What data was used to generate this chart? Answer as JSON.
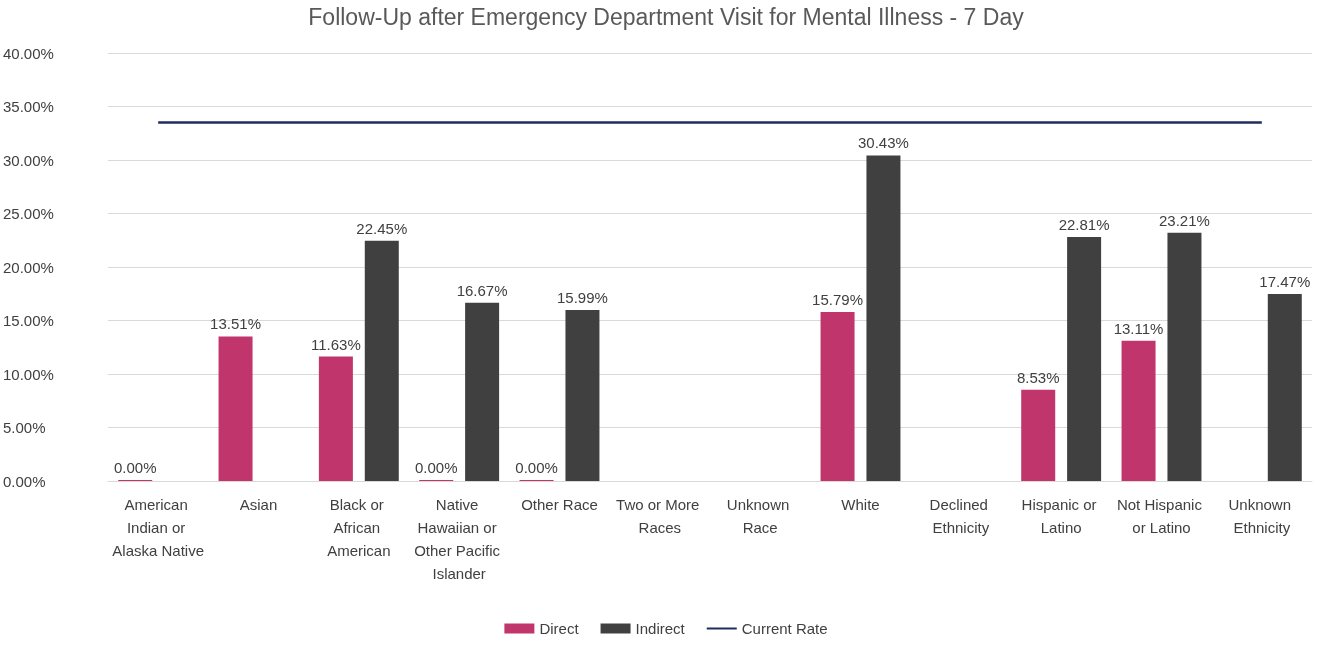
{
  "chart_data": {
    "type": "bar",
    "title": "Follow-Up after Emergency Department Visit for Mental Illness - 7 Day",
    "categories": [
      "American Indian or Alaska Native",
      "Asian",
      "Black or African American",
      "Native Hawaiian or Other Pacific Islander",
      "Other Race",
      "Two or More Races",
      "Unknown Race",
      "White",
      "Declined Ethnicity",
      "Hispanic or Latino",
      "Not Hispanic or Latino",
      "Unknown Ethnicity"
    ],
    "series": [
      {
        "name": "Direct",
        "color": "#c0356b",
        "values": [
          0,
          13.51,
          11.63,
          0,
          0,
          null,
          null,
          15.79,
          null,
          8.53,
          13.11,
          null
        ],
        "value_labels": [
          "0.00%",
          "13.51%",
          "11.63%",
          "0.00%",
          "0.00%",
          null,
          null,
          "15.79%",
          null,
          "8.53%",
          "13.11%",
          null
        ]
      },
      {
        "name": "Indirect",
        "color": "#404040",
        "values": [
          null,
          null,
          22.45,
          16.67,
          15.99,
          null,
          null,
          30.43,
          null,
          22.81,
          23.21,
          17.47
        ],
        "value_labels": [
          null,
          null,
          "22.45%",
          "16.67%",
          "15.99%",
          null,
          null,
          "30.43%",
          null,
          "22.81%",
          "23.21%",
          "17.47%"
        ]
      },
      {
        "name": "Current Rate",
        "type": "line",
        "color": "#1f2d5c",
        "marker": "none",
        "values": [
          33.5,
          33.5,
          33.5,
          33.5,
          33.5,
          33.5,
          33.5,
          33.5,
          33.5,
          33.5,
          33.5,
          33.5
        ]
      }
    ],
    "ylim": [
      0,
      40
    ],
    "yticks": [
      {
        "value": 0,
        "label": "0.00%"
      },
      {
        "value": 5,
        "label": "5.00%"
      },
      {
        "value": 10,
        "label": "10.00%"
      },
      {
        "value": 15,
        "label": "15.00%"
      },
      {
        "value": 20,
        "label": "20.00%"
      },
      {
        "value": 25,
        "label": "25.00%"
      },
      {
        "value": 30,
        "label": "30.00%"
      },
      {
        "value": 35,
        "label": "35.00%"
      },
      {
        "value": 40,
        "label": "40.00%"
      }
    ],
    "grid": "y",
    "legend": "bottom"
  }
}
